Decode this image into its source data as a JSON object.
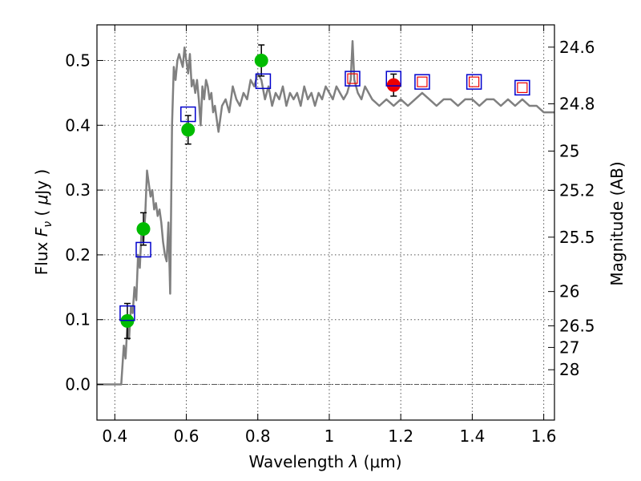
{
  "chart_data": {
    "type": "scatter",
    "title": "",
    "xlabel_parts": {
      "prefix": "Wavelength  ",
      "symbol": "λ",
      "unit": " (μm)"
    },
    "ylabel_parts": {
      "prefix": "Flux  ",
      "symbol_main": "F",
      "symbol_sub": "ν",
      "unit_open": "  ( ",
      "unit_mu": "μ",
      "unit_rest": "Jy )"
    },
    "y2label": "Magnitude (AB)",
    "xlim": [
      0.35,
      1.63
    ],
    "ylim": [
      -0.055,
      0.555
    ],
    "xticks": [
      0.4,
      0.6,
      0.8,
      1.0,
      1.2,
      1.4,
      1.6
    ],
    "xtick_labels": [
      "0.4",
      "0.6",
      "0.8",
      "1",
      "1.2",
      "1.4",
      "1.6"
    ],
    "yticks": [
      0.0,
      0.1,
      0.2,
      0.3,
      0.4,
      0.5
    ],
    "ytick_labels": [
      "0.0",
      "0.1",
      "0.2",
      "0.3",
      "0.4",
      "0.5"
    ],
    "magnitude_ticks": [
      {
        "label": "24.6",
        "flux": 0.5206
      },
      {
        "label": "24.8",
        "flux": 0.4331
      },
      {
        "label": "25",
        "flux": 0.3602
      },
      {
        "label": "25.2",
        "flux": 0.2996
      },
      {
        "label": "25.5",
        "flux": 0.2273
      },
      {
        "label": "26",
        "flux": 0.1434
      },
      {
        "label": "26.5",
        "flux": 0.0905
      },
      {
        "label": "27",
        "flux": 0.0571
      },
      {
        "label": "28",
        "flux": 0.0227
      }
    ],
    "grid": true,
    "series": [
      {
        "name": "model spectrum",
        "kind": "line",
        "color": "#808080",
        "x": [
          0.35,
          0.41,
          0.418,
          0.425,
          0.43,
          0.435,
          0.44,
          0.445,
          0.45,
          0.455,
          0.46,
          0.465,
          0.47,
          0.475,
          0.48,
          0.485,
          0.49,
          0.495,
          0.5,
          0.505,
          0.51,
          0.515,
          0.52,
          0.525,
          0.53,
          0.535,
          0.54,
          0.545,
          0.55,
          0.555,
          0.56,
          0.565,
          0.57,
          0.575,
          0.58,
          0.585,
          0.59,
          0.595,
          0.6,
          0.605,
          0.61,
          0.615,
          0.62,
          0.625,
          0.63,
          0.635,
          0.64,
          0.645,
          0.65,
          0.655,
          0.66,
          0.665,
          0.67,
          0.675,
          0.68,
          0.685,
          0.69,
          0.695,
          0.7,
          0.71,
          0.72,
          0.73,
          0.74,
          0.75,
          0.76,
          0.77,
          0.78,
          0.79,
          0.8,
          0.81,
          0.82,
          0.83,
          0.84,
          0.85,
          0.86,
          0.87,
          0.88,
          0.89,
          0.9,
          0.91,
          0.92,
          0.93,
          0.94,
          0.95,
          0.96,
          0.97,
          0.98,
          0.99,
          1.0,
          1.01,
          1.02,
          1.03,
          1.04,
          1.05,
          1.06,
          1.065,
          1.07,
          1.08,
          1.09,
          1.1,
          1.12,
          1.14,
          1.16,
          1.18,
          1.2,
          1.22,
          1.24,
          1.26,
          1.28,
          1.3,
          1.32,
          1.34,
          1.36,
          1.38,
          1.4,
          1.42,
          1.44,
          1.46,
          1.48,
          1.5,
          1.52,
          1.54,
          1.56,
          1.58,
          1.6,
          1.63
        ],
        "y": [
          0.0,
          0.0,
          0.0,
          0.06,
          0.04,
          0.09,
          0.07,
          0.12,
          0.11,
          0.15,
          0.13,
          0.2,
          0.18,
          0.24,
          0.22,
          0.26,
          0.33,
          0.31,
          0.29,
          0.3,
          0.27,
          0.28,
          0.26,
          0.27,
          0.25,
          0.22,
          0.2,
          0.19,
          0.25,
          0.14,
          0.4,
          0.49,
          0.47,
          0.5,
          0.51,
          0.5,
          0.49,
          0.52,
          0.5,
          0.48,
          0.51,
          0.46,
          0.47,
          0.45,
          0.47,
          0.44,
          0.4,
          0.46,
          0.44,
          0.47,
          0.46,
          0.44,
          0.45,
          0.42,
          0.43,
          0.41,
          0.39,
          0.41,
          0.43,
          0.44,
          0.42,
          0.46,
          0.44,
          0.43,
          0.45,
          0.44,
          0.47,
          0.46,
          0.48,
          0.47,
          0.44,
          0.46,
          0.43,
          0.45,
          0.44,
          0.46,
          0.43,
          0.45,
          0.44,
          0.45,
          0.43,
          0.46,
          0.44,
          0.45,
          0.43,
          0.45,
          0.44,
          0.46,
          0.45,
          0.44,
          0.46,
          0.45,
          0.44,
          0.45,
          0.47,
          0.53,
          0.47,
          0.45,
          0.44,
          0.46,
          0.44,
          0.43,
          0.44,
          0.43,
          0.44,
          0.43,
          0.44,
          0.45,
          0.44,
          0.43,
          0.44,
          0.44,
          0.43,
          0.44,
          0.44,
          0.43,
          0.44,
          0.44,
          0.43,
          0.44,
          0.43,
          0.44,
          0.43,
          0.43,
          0.42,
          0.42
        ]
      },
      {
        "name": "green detections",
        "kind": "points",
        "color": "#00bb00",
        "marker": "circle",
        "x": [
          0.435,
          0.48,
          0.605,
          0.81
        ],
        "y": [
          0.098,
          0.24,
          0.393,
          0.5
        ],
        "yerr": [
          0.027,
          0.025,
          0.022,
          0.024
        ]
      },
      {
        "name": "red detection",
        "kind": "points",
        "color": "#ee0000",
        "marker": "circle",
        "x": [
          1.18
        ],
        "y": [
          0.462
        ],
        "yerr": [
          0.017
        ]
      },
      {
        "name": "blue model photometry",
        "kind": "points",
        "color": "#0000cc",
        "marker": "open-square",
        "x": [
          0.435,
          0.48,
          0.605,
          0.815,
          1.065,
          1.18,
          1.26,
          1.405,
          1.54
        ],
        "y": [
          0.11,
          0.208,
          0.417,
          0.468,
          0.472,
          0.472,
          0.467,
          0.467,
          0.458
        ]
      },
      {
        "name": "red model photometry",
        "kind": "points",
        "color": "#ee0000",
        "marker": "open-square-small",
        "x": [
          1.065,
          1.26,
          1.405,
          1.54
        ],
        "y": [
          0.472,
          0.467,
          0.467,
          0.458
        ]
      }
    ]
  }
}
